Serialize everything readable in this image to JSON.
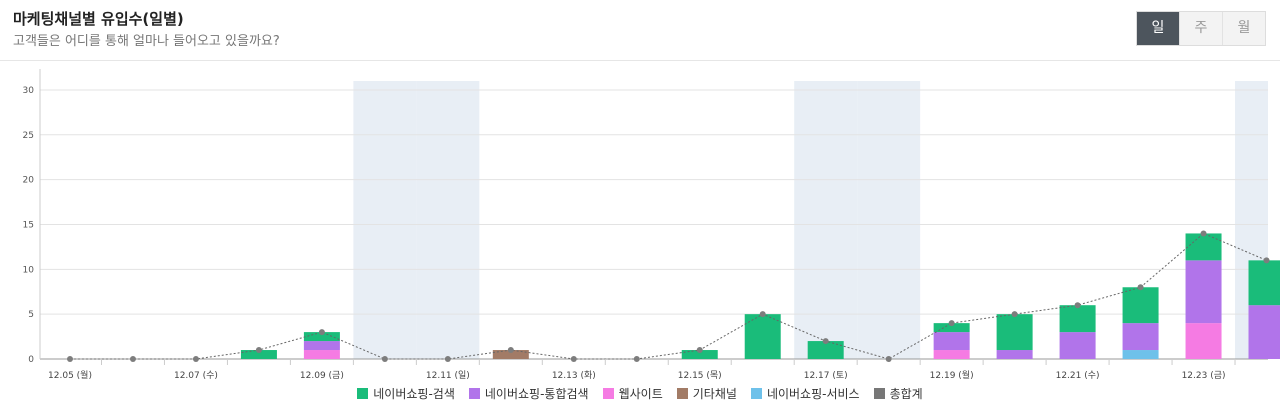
{
  "header": {
    "title": "마케팅채널별 유입수(일별)",
    "subtitle": "고객들은 어디를 통해 얼마나 들어오고 있을까요?"
  },
  "period_toggle": {
    "options": [
      "일",
      "주",
      "월"
    ],
    "selected": "일"
  },
  "chart_data": {
    "type": "bar",
    "stacked": true,
    "categories": [
      "12.05",
      "12.06",
      "12.07",
      "12.08",
      "12.09",
      "12.10",
      "12.11",
      "12.12",
      "12.13",
      "12.14",
      "12.15",
      "12.16",
      "12.17",
      "12.18",
      "12.19",
      "12.20",
      "12.21",
      "12.22",
      "12.23",
      "12.24"
    ],
    "x_tick_labels": [
      "12.05 (월)",
      "12.07 (수)",
      "12.09 (금)",
      "12.11 (일)",
      "12.13 (화)",
      "12.15 (목)",
      "12.17 (토)",
      "12.19 (월)",
      "12.21 (수)",
      "12.23 (금)"
    ],
    "weekend_shaded": [
      "12.10",
      "12.11",
      "12.17",
      "12.18",
      "12.24"
    ],
    "series": [
      {
        "name": "네이버쇼핑-서비스",
        "color": "#6ec1ea",
        "values": [
          0,
          0,
          0,
          0,
          0,
          0,
          0,
          0,
          0,
          0,
          0,
          0,
          0,
          0,
          0,
          0,
          0,
          1,
          0,
          0
        ]
      },
      {
        "name": "웹사이트",
        "color": "#f57be3",
        "values": [
          0,
          0,
          0,
          0,
          1,
          0,
          0,
          0,
          0,
          0,
          0,
          0,
          0,
          0,
          1,
          0,
          0,
          0,
          4,
          0
        ]
      },
      {
        "name": "네이버쇼핑-통합검색",
        "color": "#b174ea",
        "values": [
          0,
          0,
          0,
          0,
          1,
          0,
          0,
          0,
          0,
          0,
          0,
          0,
          0,
          0,
          2,
          1,
          3,
          3,
          7,
          6
        ]
      },
      {
        "name": "기타채널",
        "color": "#a27b66",
        "values": [
          0,
          0,
          0,
          0,
          0,
          0,
          0,
          1,
          0,
          0,
          0,
          0,
          0,
          0,
          0,
          0,
          0,
          0,
          0,
          0
        ]
      },
      {
        "name": "네이버쇼핑-검색",
        "color": "#1abc7a",
        "values": [
          0,
          0,
          0,
          1,
          1,
          0,
          0,
          0,
          0,
          0,
          1,
          5,
          2,
          0,
          1,
          4,
          3,
          4,
          3,
          5
        ]
      }
    ],
    "total": {
      "name": "총합계",
      "color": "#777777",
      "values": [
        0,
        0,
        0,
        1,
        3,
        0,
        0,
        1,
        0,
        0,
        1,
        5,
        2,
        0,
        4,
        5,
        6,
        8,
        14,
        11
      ]
    },
    "y_ticks": [
      0,
      5,
      10,
      15,
      20,
      25,
      30
    ],
    "ylim": [
      0,
      31
    ],
    "legend": [
      "네이버쇼핑-검색",
      "네이버쇼핑-통합검색",
      "웹사이트",
      "기타채널",
      "네이버쇼핑-서비스",
      "총합계"
    ],
    "legend_colors": [
      "#1abc7a",
      "#b174ea",
      "#f57be3",
      "#a27b66",
      "#6ec1ea",
      "#777777"
    ]
  }
}
